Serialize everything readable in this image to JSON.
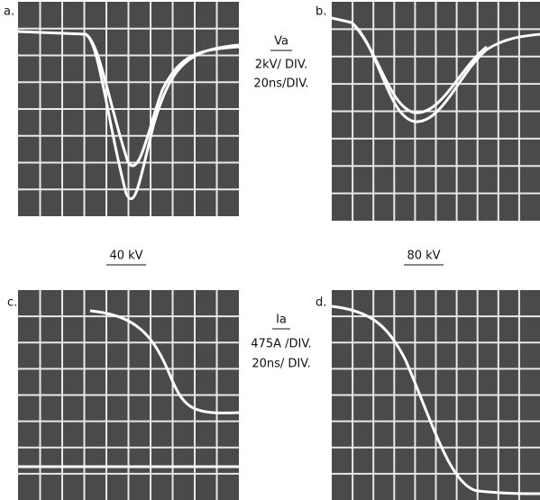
{
  "panels": [
    {
      "label": "a."
    },
    {
      "label": "b."
    },
    {
      "label": "c."
    },
    {
      "label": "d."
    }
  ],
  "voltage_scale": {
    "title": "Va",
    "vertical": "2kV/ DIV.",
    "horizontal": "20ns/DIV."
  },
  "current_scale": {
    "title": "Ia",
    "vertical": "475A /DIV.",
    "horizontal": "20ns/ DIV."
  },
  "conditions": [
    "40 kV",
    "80 kV"
  ]
}
